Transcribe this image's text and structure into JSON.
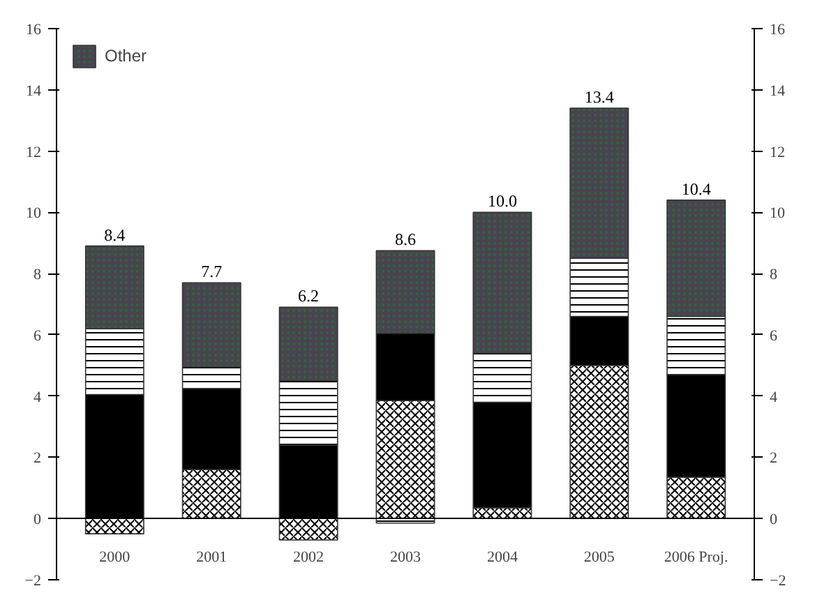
{
  "chart_data": {
    "type": "bar",
    "stacked": true,
    "categories": [
      "2000",
      "2001",
      "2002",
      "2003",
      "2004",
      "2005",
      "2006 Proj."
    ],
    "series": [
      {
        "color": "#ffffff",
        "values": [
          -0.5,
          1.6,
          -0.7,
          3.85,
          0.35,
          5.0,
          1.35
        ]
      },
      {
        "color": "#000000",
        "values": [
          4.05,
          2.65,
          2.4,
          2.2,
          3.45,
          1.6,
          3.35
        ]
      },
      {
        "color": "#ffffff",
        "values": [
          2.15,
          0.7,
          2.1,
          -0.15,
          1.6,
          1.9,
          1.9
        ]
      },
      {
        "name": "Other",
        "color": "#4a4250",
        "values": [
          2.7,
          2.75,
          2.4,
          2.7,
          4.6,
          4.9,
          3.8
        ]
      }
    ],
    "totals": [
      "8.4",
      "7.7",
      "6.2",
      "8.6",
      "10.0",
      "13.4",
      "10.4"
    ],
    "ylim": [
      -2,
      16
    ],
    "yticks": [
      -2,
      0,
      2,
      4,
      6,
      8,
      10,
      12,
      14,
      16
    ],
    "y2lim": [
      -2,
      16
    ],
    "y2ticks": [
      -2,
      0,
      2,
      4,
      6,
      8,
      10,
      12,
      14,
      16
    ],
    "grid": false,
    "legend": "top left"
  }
}
